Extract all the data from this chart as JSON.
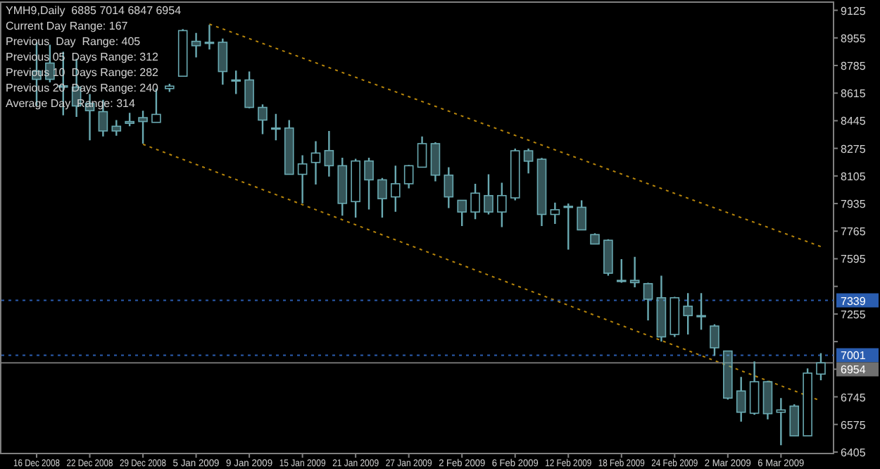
{
  "chart_data": {
    "type": "candlestick",
    "title": "YMH9,Daily  6885 7014 6847 6954",
    "color": "#6aaab2",
    "annotations": [
      "Current Day Range: 167",
      "Previous  Day  Range: 405",
      "Previous 05  Days Range: 312",
      "Previous 10  Days Range: 282",
      "Previous 20  Days Range: 240",
      "Average Day  Range: 314"
    ],
    "categories": [
      "16 Dec 2008",
      null,
      null,
      null,
      "22 Dec 2008",
      null,
      null,
      null,
      "29 Dec 2008",
      null,
      null,
      null,
      "5 Jan 2009",
      null,
      null,
      null,
      "9 Jan 2009",
      null,
      null,
      null,
      "15 Jan 2009",
      null,
      null,
      null,
      "21 Jan 2009",
      null,
      null,
      null,
      "27 Jan 2009",
      null,
      null,
      null,
      "2 Feb 2009",
      null,
      null,
      null,
      "6 Feb 2009",
      null,
      null,
      null,
      "12 Feb 2009",
      null,
      null,
      null,
      "18 Feb 2009",
      null,
      null,
      null,
      "24 Feb 2009",
      null,
      null,
      null,
      "2 Mar 2009",
      null,
      null,
      null,
      "6 Mar 2009",
      null,
      null,
      null
    ],
    "ohlc": [
      [
        8750,
        8928,
        8536,
        8700
      ],
      [
        8800,
        8913,
        8681,
        8700
      ],
      [
        8660,
        8870,
        8478,
        8652
      ],
      [
        8652,
        8826,
        8469,
        8536
      ],
      [
        8551,
        8609,
        8324,
        8507
      ],
      [
        8501,
        8574,
        8348,
        8382
      ],
      [
        8411,
        8449,
        8353,
        8382
      ],
      [
        8440,
        8493,
        8411,
        8429
      ],
      [
        8464,
        8507,
        8304,
        8440
      ],
      [
        8435,
        8643,
        8435,
        8484
      ],
      [
        8643,
        8672,
        8623,
        8658
      ],
      [
        8719,
        9009,
        8719,
        9000
      ],
      [
        8934,
        8986,
        8835,
        8907
      ],
      [
        8922,
        9036,
        8884,
        8928
      ],
      [
        8928,
        8951,
        8667,
        8748
      ],
      [
        8696,
        8754,
        8609,
        8696
      ],
      [
        8696,
        8748,
        8522,
        8527
      ],
      [
        8527,
        8545,
        8362,
        8449
      ],
      [
        8400,
        8487,
        8324,
        8400
      ],
      [
        8400,
        8449,
        8115,
        8115
      ],
      [
        8115,
        8232,
        7936,
        8179
      ],
      [
        8188,
        8319,
        8052,
        8246
      ],
      [
        8261,
        8382,
        8101,
        8168
      ],
      [
        8168,
        8217,
        7861,
        7936
      ],
      [
        7947,
        8211,
        7849,
        8197
      ],
      [
        8197,
        8217,
        7898,
        8081
      ],
      [
        8081,
        8092,
        7849,
        7965
      ],
      [
        7976,
        8168,
        7884,
        8057
      ],
      [
        8057,
        8173,
        8028,
        8168
      ],
      [
        8159,
        8348,
        8159,
        8304
      ],
      [
        8304,
        8313,
        8072,
        8110
      ],
      [
        8110,
        8159,
        7907,
        7976
      ],
      [
        7955,
        7956,
        7796,
        7883
      ],
      [
        7883,
        8057,
        7839,
        7999
      ],
      [
        7984,
        8115,
        7868,
        7883
      ],
      [
        7883,
        8063,
        7790,
        7984
      ],
      [
        7970,
        8274,
        7955,
        8260
      ],
      [
        8260,
        8274,
        8121,
        8196
      ],
      [
        8208,
        8216,
        7796,
        7868
      ],
      [
        7868,
        7941,
        7810,
        7897
      ],
      [
        7918,
        7935,
        7651,
        7918
      ],
      [
        7912,
        7955,
        7773,
        7773
      ],
      [
        7744,
        7752,
        7686,
        7686
      ],
      [
        7709,
        7715,
        7491,
        7506
      ],
      [
        7462,
        7593,
        7448,
        7462
      ],
      [
        7462,
        7607,
        7419,
        7448
      ],
      [
        7442,
        7448,
        7216,
        7346
      ],
      [
        7355,
        7491,
        7085,
        7114
      ],
      [
        7129,
        7361,
        7114,
        7355
      ],
      [
        7303,
        7384,
        7129,
        7245
      ],
      [
        7245,
        7384,
        7158,
        7245
      ],
      [
        7181,
        7192,
        6998,
        7047
      ],
      [
        7027,
        7027,
        6728,
        6737
      ],
      [
        6781,
        6867,
        6592,
        6650
      ],
      [
        6644,
        6963,
        6635,
        6838
      ],
      [
        6838,
        6844,
        6606,
        6641
      ],
      [
        6650,
        6737,
        6447,
        6664
      ],
      [
        6688,
        6699,
        6505,
        6505
      ],
      [
        6505,
        6920,
        6505,
        6891
      ],
      [
        6885,
        7014,
        6847,
        6954
      ]
    ],
    "series": [
      {
        "type": "line",
        "color": "#b8860b",
        "line_style": "dotted",
        "values": [
          null,
          null,
          null,
          null,
          null,
          null,
          null,
          null,
          null,
          null,
          null,
          null,
          null,
          9040,
          null,
          null,
          null,
          null,
          null,
          null,
          null,
          null,
          null,
          null,
          null,
          null,
          null,
          null,
          null,
          null,
          null,
          null,
          null,
          null,
          null,
          null,
          null,
          null,
          null,
          null,
          null,
          null,
          null,
          null,
          null,
          null,
          null,
          null,
          null,
          null,
          null,
          null,
          null,
          null,
          null,
          null,
          null,
          null,
          null,
          7670
        ]
      },
      {
        "type": "line",
        "color": "#b8860b",
        "line_style": "dotted",
        "values": [
          null,
          null,
          null,
          null,
          null,
          null,
          null,
          null,
          8300,
          null,
          null,
          null,
          null,
          null,
          null,
          null,
          null,
          null,
          null,
          null,
          null,
          null,
          null,
          null,
          null,
          null,
          null,
          null,
          null,
          null,
          null,
          null,
          null,
          null,
          null,
          null,
          null,
          null,
          null,
          null,
          null,
          null,
          null,
          null,
          null,
          null,
          null,
          null,
          null,
          null,
          null,
          null,
          null,
          null,
          null,
          null,
          null,
          null,
          null,
          6720
        ]
      }
    ],
    "ylim": [
      6396,
      9171
    ],
    "yticks": [
      9125,
      8955,
      8785,
      8615,
      8445,
      8275,
      8105,
      7935,
      7765,
      7595,
      {
        "value": 7425,
        "label": null
      },
      7255,
      {
        "value": 7085,
        "label": null
      },
      {
        "value": 6915,
        "label": null
      },
      6745,
      6575,
      6405
    ],
    "ref_lines": [
      {
        "axis": "y",
        "value": 7339,
        "label": "7339",
        "color": "#2a5db0",
        "line_style": "dotted"
      },
      {
        "axis": "y",
        "value": 7001,
        "label": "7001",
        "color": "#2a5db0",
        "line_style": "dotted"
      },
      {
        "axis": "y",
        "value": 6954,
        "label": "6954",
        "color": "#707070",
        "line_style": "solid"
      }
    ]
  }
}
